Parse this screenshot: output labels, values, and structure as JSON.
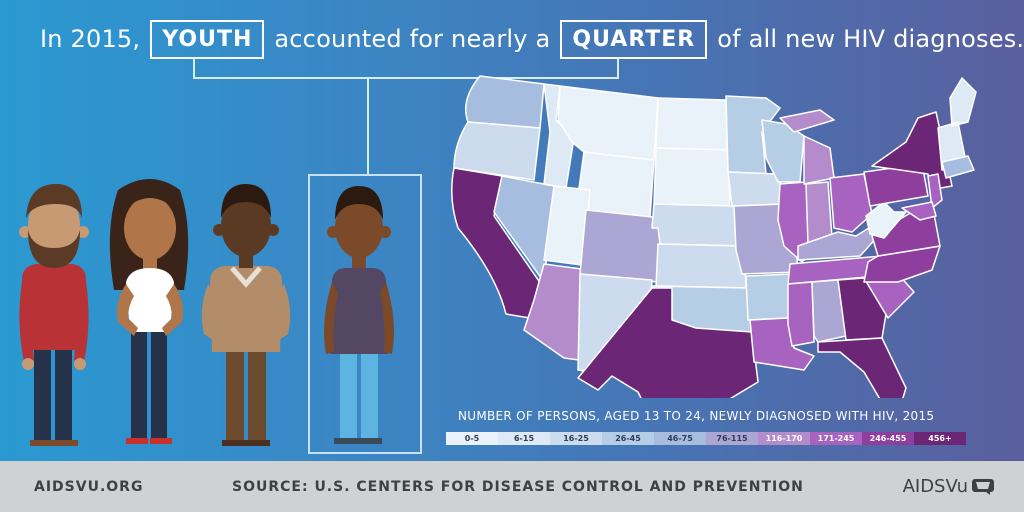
{
  "headline": {
    "part1": "In 2015,",
    "box1": "YOUTH",
    "part2": "accounted for nearly a",
    "box2": "QUARTER",
    "part3": "of all new HIV diagnoses."
  },
  "map": {
    "legend_title": "NUMBER OF PERSONS, AGED 13 TO 24, NEWLY DIAGNOSED WITH HIV, 2015",
    "legend": [
      {
        "label": "0-5",
        "color": "#eaf2f9"
      },
      {
        "label": "6-15",
        "color": "#dde9f4"
      },
      {
        "label": "16-25",
        "color": "#ccdcee"
      },
      {
        "label": "26-45",
        "color": "#b6cde6"
      },
      {
        "label": "46-75",
        "color": "#a6bde0"
      },
      {
        "label": "76-115",
        "color": "#aba6d4"
      },
      {
        "label": "116-170",
        "color": "#b48ccc"
      },
      {
        "label": "171-245",
        "color": "#a763bf"
      },
      {
        "label": "246-455",
        "color": "#8e3f9e"
      },
      {
        "label": "456+",
        "color": "#6c2676"
      }
    ]
  },
  "footer": {
    "site": "AIDSVU.ORG",
    "source": "SOURCE: U.S. CENTERS FOR DISEASE CONTROL AND PREVENTION",
    "brand": "AIDSVu"
  }
}
